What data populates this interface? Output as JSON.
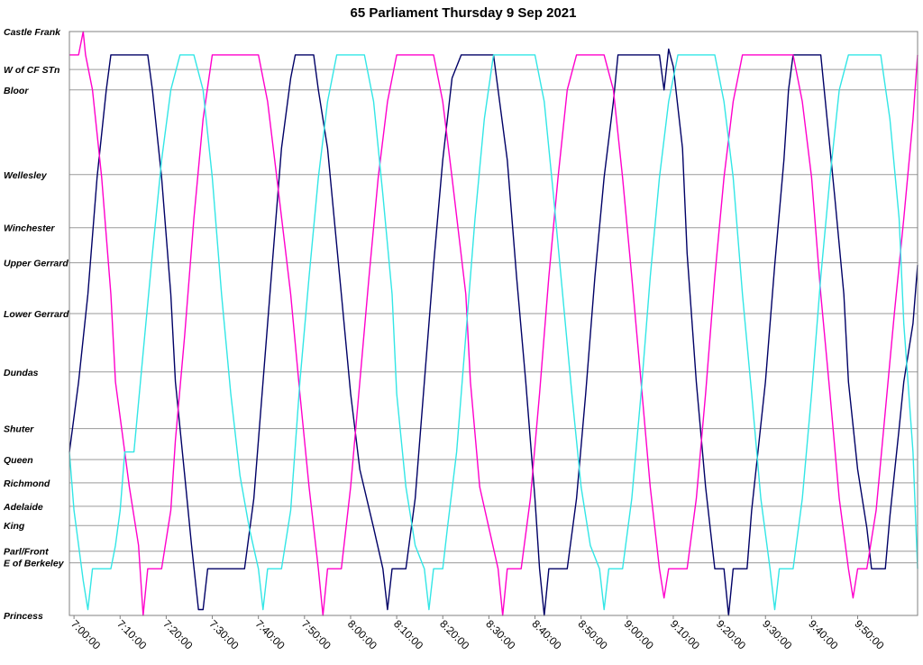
{
  "chart_data": {
    "type": "line",
    "title": "65 Parliament Thursday 9 Sep 2021",
    "xlabel": "",
    "ylabel": "",
    "xlim": [
      "6:59:00",
      "10:03:00"
    ],
    "grid": true,
    "stops": [
      {
        "label": "Castle Frank",
        "pos": 0.0
      },
      {
        "label": "W of CF STn",
        "pos": 0.065
      },
      {
        "label": "Bloor",
        "pos": 0.1
      },
      {
        "label": "Wellesley",
        "pos": 0.245
      },
      {
        "label": "Winchester",
        "pos": 0.336
      },
      {
        "label": "Upper Gerrard",
        "pos": 0.396
      },
      {
        "label": "Lower Gerrard",
        "pos": 0.483
      },
      {
        "label": "Dundas",
        "pos": 0.583
      },
      {
        "label": "Shuter",
        "pos": 0.68
      },
      {
        "label": "Queen",
        "pos": 0.733
      },
      {
        "label": "Richmond",
        "pos": 0.773
      },
      {
        "label": "Adelaide",
        "pos": 0.813
      },
      {
        "label": "King",
        "pos": 0.846
      },
      {
        "label": "Parl/Front",
        "pos": 0.89
      },
      {
        "label": "E of Berkeley",
        "pos": 0.91
      },
      {
        "label": "Princess",
        "pos": 1.0
      }
    ],
    "x_ticks": [
      "7:00:00",
      "7:10:00",
      "7:20:00",
      "7:30:00",
      "7:40:00",
      "7:50:00",
      "8:00:00",
      "8:10:00",
      "8:20:00",
      "8:30:00",
      "8:40:00",
      "8:50:00",
      "9:00:00",
      "9:10:00",
      "9:20:00",
      "9:30:00",
      "9:40:00",
      "9:50:00"
    ],
    "series": [
      {
        "color": "#000066",
        "points": [
          [
            "6:59:00",
            0.72
          ],
          [
            "7:01:00",
            0.6
          ],
          [
            "7:03:00",
            0.45
          ],
          [
            "7:05:00",
            0.25
          ],
          [
            "7:07:00",
            0.1
          ],
          [
            "7:08:00",
            0.04
          ],
          [
            "7:16:00",
            0.04
          ],
          [
            "7:17:00",
            0.1
          ],
          [
            "7:19:00",
            0.25
          ],
          [
            "7:21:00",
            0.45
          ],
          [
            "7:22:00",
            0.6
          ],
          [
            "7:24:00",
            0.76
          ],
          [
            "7:25:30",
            0.88
          ],
          [
            "7:27:00",
            0.99
          ],
          [
            "7:28:00",
            0.99
          ],
          [
            "7:29:00",
            0.92
          ],
          [
            "7:37:00",
            0.92
          ],
          [
            "7:39:00",
            0.8
          ],
          [
            "7:41:00",
            0.6
          ],
          [
            "7:43:00",
            0.4
          ],
          [
            "7:45:00",
            0.2
          ],
          [
            "7:47:00",
            0.08
          ],
          [
            "7:48:00",
            0.04
          ],
          [
            "7:52:00",
            0.04
          ],
          [
            "7:53:00",
            0.1
          ],
          [
            "7:55:00",
            0.2
          ],
          [
            "7:58:00",
            0.45
          ],
          [
            "8:00:00",
            0.62
          ],
          [
            "8:02:00",
            0.75
          ],
          [
            "8:05:00",
            0.85
          ],
          [
            "8:07:00",
            0.92
          ],
          [
            "8:08:00",
            0.99
          ],
          [
            "8:09:00",
            0.92
          ],
          [
            "8:12:00",
            0.92
          ],
          [
            "8:14:00",
            0.8
          ],
          [
            "8:16:00",
            0.6
          ],
          [
            "8:18:00",
            0.4
          ],
          [
            "8:20:00",
            0.22
          ],
          [
            "8:22:00",
            0.08
          ],
          [
            "8:24:00",
            0.04
          ],
          [
            "8:31:00",
            0.04
          ],
          [
            "8:32:00",
            0.1
          ],
          [
            "8:34:00",
            0.22
          ],
          [
            "8:36:00",
            0.42
          ],
          [
            "8:38:00",
            0.6
          ],
          [
            "8:40:00",
            0.8
          ],
          [
            "8:41:00",
            0.92
          ],
          [
            "8:42:00",
            1.0
          ],
          [
            "8:43:00",
            0.92
          ],
          [
            "8:47:00",
            0.92
          ],
          [
            "8:49:00",
            0.8
          ],
          [
            "8:51:00",
            0.62
          ],
          [
            "8:53:00",
            0.42
          ],
          [
            "8:55:00",
            0.25
          ],
          [
            "8:57:00",
            0.12
          ],
          [
            "8:58:00",
            0.04
          ],
          [
            "9:07:00",
            0.04
          ],
          [
            "9:08:00",
            0.1
          ],
          [
            "9:09:00",
            0.03
          ],
          [
            "9:10:00",
            0.06
          ],
          [
            "9:12:00",
            0.2
          ],
          [
            "9:13:00",
            0.38
          ],
          [
            "9:15:00",
            0.6
          ],
          [
            "9:17:00",
            0.78
          ],
          [
            "9:19:00",
            0.92
          ],
          [
            "9:21:00",
            0.92
          ],
          [
            "9:22:00",
            1.0
          ],
          [
            "9:23:00",
            0.92
          ],
          [
            "9:26:00",
            0.92
          ],
          [
            "9:27:00",
            0.82
          ],
          [
            "9:30:00",
            0.6
          ],
          [
            "9:32:00",
            0.4
          ],
          [
            "9:34:00",
            0.22
          ],
          [
            "9:35:00",
            0.1
          ],
          [
            "9:36:00",
            0.04
          ],
          [
            "9:42:00",
            0.04
          ],
          [
            "9:43:00",
            0.12
          ],
          [
            "9:45:00",
            0.28
          ],
          [
            "9:47:00",
            0.45
          ],
          [
            "9:48:00",
            0.6
          ],
          [
            "9:50:00",
            0.75
          ],
          [
            "9:52:00",
            0.85
          ],
          [
            "9:53:00",
            0.92
          ],
          [
            "9:56:00",
            0.92
          ],
          [
            "9:57:00",
            0.83
          ],
          [
            "9:59:00",
            0.68
          ],
          [
            "10:00:00",
            0.6
          ],
          [
            "10:02:00",
            0.5
          ],
          [
            "10:03:00",
            0.4
          ]
        ]
      },
      {
        "color": "#FF00CC",
        "points": [
          [
            "6:59:00",
            0.04
          ],
          [
            "7:01:00",
            0.04
          ],
          [
            "7:02:00",
            0.0
          ],
          [
            "7:02:30",
            0.04
          ],
          [
            "7:04:00",
            0.1
          ],
          [
            "7:06:00",
            0.25
          ],
          [
            "7:08:00",
            0.45
          ],
          [
            "7:09:00",
            0.6
          ],
          [
            "7:11:00",
            0.72
          ],
          [
            "7:12:00",
            0.78
          ],
          [
            "7:14:00",
            0.88
          ],
          [
            "7:15:00",
            1.0
          ],
          [
            "7:16:00",
            0.92
          ],
          [
            "7:19:00",
            0.92
          ],
          [
            "7:21:00",
            0.82
          ],
          [
            "7:22:00",
            0.7
          ],
          [
            "7:24:00",
            0.52
          ],
          [
            "7:26:00",
            0.32
          ],
          [
            "7:28:00",
            0.15
          ],
          [
            "7:30:00",
            0.04
          ],
          [
            "7:40:00",
            0.04
          ],
          [
            "7:42:00",
            0.12
          ],
          [
            "7:44:00",
            0.25
          ],
          [
            "7:47:00",
            0.45
          ],
          [
            "7:49:00",
            0.62
          ],
          [
            "7:51:00",
            0.78
          ],
          [
            "7:53:00",
            0.92
          ],
          [
            "7:54:00",
            1.0
          ],
          [
            "7:55:00",
            0.92
          ],
          [
            "7:58:00",
            0.92
          ],
          [
            "8:00:00",
            0.78
          ],
          [
            "8:02:00",
            0.6
          ],
          [
            "8:04:00",
            0.42
          ],
          [
            "8:06:00",
            0.25
          ],
          [
            "8:08:00",
            0.12
          ],
          [
            "8:10:00",
            0.04
          ],
          [
            "8:18:00",
            0.04
          ],
          [
            "8:20:00",
            0.12
          ],
          [
            "8:22:00",
            0.25
          ],
          [
            "8:25:00",
            0.45
          ],
          [
            "8:26:00",
            0.6
          ],
          [
            "8:28:00",
            0.78
          ],
          [
            "8:30:00",
            0.85
          ],
          [
            "8:32:00",
            0.92
          ],
          [
            "8:33:00",
            1.0
          ],
          [
            "8:34:00",
            0.92
          ],
          [
            "8:37:00",
            0.92
          ],
          [
            "8:39:00",
            0.8
          ],
          [
            "8:41:00",
            0.62
          ],
          [
            "8:43:00",
            0.42
          ],
          [
            "8:45:00",
            0.25
          ],
          [
            "8:47:00",
            0.1
          ],
          [
            "8:49:00",
            0.04
          ],
          [
            "8:55:00",
            0.04
          ],
          [
            "8:57:00",
            0.1
          ],
          [
            "8:59:00",
            0.25
          ],
          [
            "9:01:00",
            0.42
          ],
          [
            "9:03:00",
            0.6
          ],
          [
            "9:05:00",
            0.78
          ],
          [
            "9:07:00",
            0.92
          ],
          [
            "9:08:00",
            0.97
          ],
          [
            "9:09:00",
            0.92
          ],
          [
            "9:13:00",
            0.92
          ],
          [
            "9:15:00",
            0.8
          ],
          [
            "9:17:00",
            0.62
          ],
          [
            "9:19:00",
            0.42
          ],
          [
            "9:21:00",
            0.25
          ],
          [
            "9:23:00",
            0.12
          ],
          [
            "9:25:00",
            0.04
          ],
          [
            "9:36:00",
            0.04
          ],
          [
            "9:38:00",
            0.12
          ],
          [
            "9:40:00",
            0.25
          ],
          [
            "9:42:00",
            0.45
          ],
          [
            "9:44:00",
            0.62
          ],
          [
            "9:46:00",
            0.8
          ],
          [
            "9:48:00",
            0.92
          ],
          [
            "9:49:00",
            0.97
          ],
          [
            "9:50:00",
            0.92
          ],
          [
            "9:52:00",
            0.92
          ],
          [
            "9:54:00",
            0.82
          ],
          [
            "9:56:00",
            0.65
          ],
          [
            "9:58:00",
            0.48
          ],
          [
            "10:00:00",
            0.32
          ],
          [
            "10:02:00",
            0.15
          ],
          [
            "10:03:00",
            0.04
          ]
        ]
      },
      {
        "color": "#33E6E6",
        "points": [
          [
            "6:59:00",
            0.72
          ],
          [
            "7:00:00",
            0.82
          ],
          [
            "7:01:00",
            0.88
          ],
          [
            "7:02:00",
            0.94
          ],
          [
            "7:03:00",
            0.99
          ],
          [
            "7:04:00",
            0.92
          ],
          [
            "7:08:00",
            0.92
          ],
          [
            "7:09:00",
            0.88
          ],
          [
            "7:10:00",
            0.82
          ],
          [
            "7:11:00",
            0.72
          ],
          [
            "7:13:00",
            0.72
          ],
          [
            "7:15:00",
            0.55
          ],
          [
            "7:17:00",
            0.38
          ],
          [
            "7:19:00",
            0.22
          ],
          [
            "7:21:00",
            0.1
          ],
          [
            "7:23:00",
            0.04
          ],
          [
            "7:26:00",
            0.04
          ],
          [
            "7:28:00",
            0.1
          ],
          [
            "7:30:00",
            0.25
          ],
          [
            "7:32:00",
            0.45
          ],
          [
            "7:34:00",
            0.62
          ],
          [
            "7:36:00",
            0.76
          ],
          [
            "7:38:00",
            0.85
          ],
          [
            "7:40:00",
            0.92
          ],
          [
            "7:41:00",
            0.99
          ],
          [
            "7:42:00",
            0.92
          ],
          [
            "7:45:00",
            0.92
          ],
          [
            "7:47:00",
            0.82
          ],
          [
            "7:49:00",
            0.6
          ],
          [
            "7:51:00",
            0.42
          ],
          [
            "7:53:00",
            0.25
          ],
          [
            "7:55:00",
            0.12
          ],
          [
            "7:57:00",
            0.04
          ],
          [
            "8:03:00",
            0.04
          ],
          [
            "8:05:00",
            0.12
          ],
          [
            "8:07:00",
            0.28
          ],
          [
            "8:09:00",
            0.45
          ],
          [
            "8:10:00",
            0.62
          ],
          [
            "8:12:00",
            0.78
          ],
          [
            "8:14:00",
            0.88
          ],
          [
            "8:16:00",
            0.92
          ],
          [
            "8:17:00",
            0.99
          ],
          [
            "8:18:00",
            0.92
          ],
          [
            "8:20:00",
            0.92
          ],
          [
            "8:21:00",
            0.85
          ],
          [
            "8:23:00",
            0.72
          ],
          [
            "8:25:00",
            0.52
          ],
          [
            "8:27:00",
            0.32
          ],
          [
            "8:29:00",
            0.15
          ],
          [
            "8:31:00",
            0.04
          ],
          [
            "8:40:00",
            0.04
          ],
          [
            "8:42:00",
            0.12
          ],
          [
            "8:44:00",
            0.28
          ],
          [
            "8:46:00",
            0.45
          ],
          [
            "8:48:00",
            0.62
          ],
          [
            "8:50:00",
            0.78
          ],
          [
            "8:52:00",
            0.88
          ],
          [
            "8:54:00",
            0.92
          ],
          [
            "8:55:00",
            0.99
          ],
          [
            "8:56:00",
            0.92
          ],
          [
            "8:59:00",
            0.92
          ],
          [
            "9:01:00",
            0.8
          ],
          [
            "9:03:00",
            0.62
          ],
          [
            "9:05:00",
            0.42
          ],
          [
            "9:07:00",
            0.25
          ],
          [
            "9:09:00",
            0.12
          ],
          [
            "9:11:00",
            0.04
          ],
          [
            "9:19:00",
            0.04
          ],
          [
            "9:21:00",
            0.12
          ],
          [
            "9:23:00",
            0.25
          ],
          [
            "9:25:00",
            0.45
          ],
          [
            "9:27:00",
            0.62
          ],
          [
            "9:29:00",
            0.8
          ],
          [
            "9:31:00",
            0.92
          ],
          [
            "9:32:00",
            0.99
          ],
          [
            "9:33:00",
            0.92
          ],
          [
            "9:36:00",
            0.92
          ],
          [
            "9:38:00",
            0.8
          ],
          [
            "9:40:00",
            0.62
          ],
          [
            "9:42:00",
            0.42
          ],
          [
            "9:44:00",
            0.25
          ],
          [
            "9:46:00",
            0.1
          ],
          [
            "9:48:00",
            0.04
          ],
          [
            "9:55:00",
            0.04
          ],
          [
            "9:57:00",
            0.15
          ],
          [
            "9:59:00",
            0.32
          ],
          [
            "10:00:00",
            0.5
          ],
          [
            "10:02:00",
            0.72
          ],
          [
            "10:03:00",
            0.92
          ]
        ]
      }
    ]
  }
}
